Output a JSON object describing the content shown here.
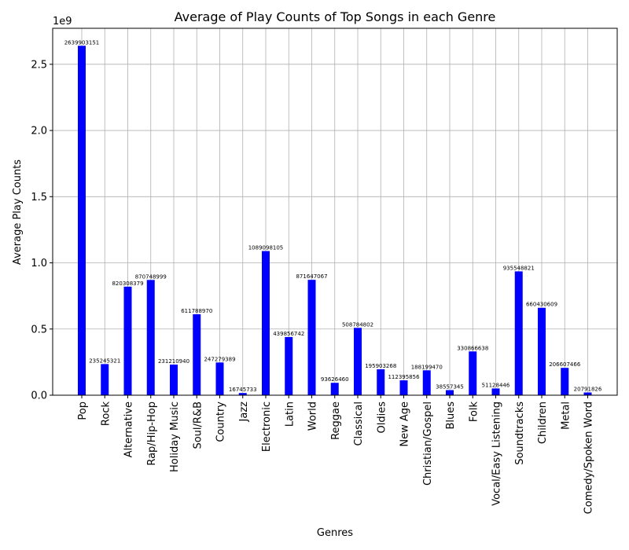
{
  "chart_data": {
    "type": "bar",
    "title": "Average of Play Counts of Top Songs in each Genre",
    "xlabel": "Genres",
    "ylabel": "Average Play Counts",
    "y_offset_text": "1e9",
    "y_scale_factor": 1000000000,
    "ylim": [
      0,
      2.772
    ],
    "yticks": [
      0.0,
      0.5,
      1.0,
      1.5,
      2.0,
      2.5
    ],
    "ytick_labels": [
      "0.0",
      "0.5",
      "1.0",
      "1.5",
      "2.0",
      "2.5"
    ],
    "grid": true,
    "bar_color": "#0000ff",
    "categories": [
      "Pop",
      "Rock",
      "Alternative",
      "Rap/Hip-Hop",
      "Holiday Music",
      "Soul/R&B",
      "Country",
      "Jazz",
      "Electronic",
      "Latin",
      "World",
      "Reggae",
      "Classical",
      "Oldies",
      "New Age",
      "Christian/Gospel",
      "Blues",
      "Folk",
      "Vocal/Easy Listening",
      "Soundtracks",
      "Children",
      "Metal",
      "Comedy/Spoken Word"
    ],
    "values": [
      2639903151,
      235245321,
      820308379,
      870748999,
      231210940,
      611788970,
      247279389,
      16745733,
      1089098105,
      439856742,
      871647067,
      93626460,
      508784802,
      195903268,
      112395856,
      188199470,
      38557345,
      330866638,
      51128446,
      935548821,
      660430609,
      206607466,
      20791826
    ],
    "data_labels": [
      "2639903151",
      "235245321",
      "820308379",
      "870748999",
      "231210940",
      "611788970",
      "247279389",
      "16745733",
      "1089098105",
      "439856742",
      "871647067",
      "93626460",
      "508784802",
      "195903268",
      "112395856",
      "188199470",
      "38557345",
      "330866638",
      "51128446",
      "935548821",
      "660430609",
      "206607466",
      "20791826"
    ]
  }
}
